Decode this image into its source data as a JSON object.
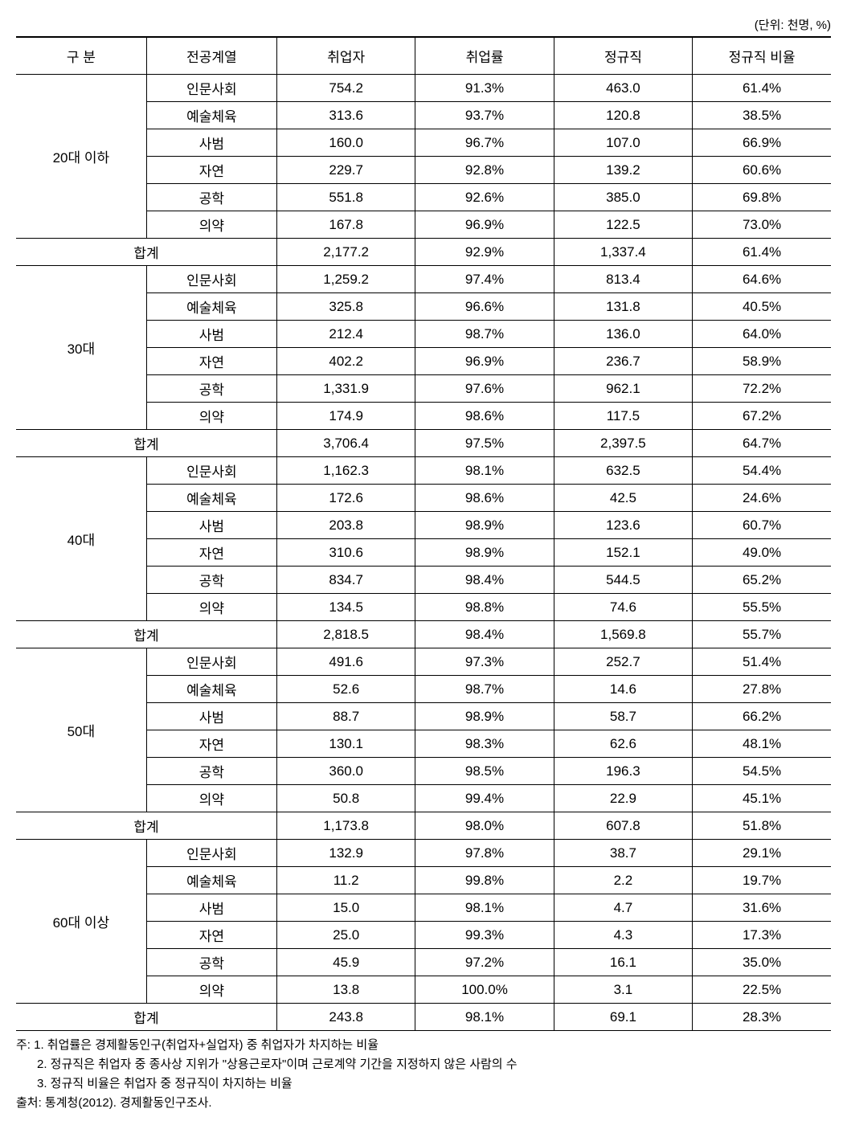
{
  "unit_label": "(단위: 천명, %)",
  "headers": {
    "c1": "구 분",
    "c2": "전공계열",
    "c3": "취업자",
    "c4": "취업률",
    "c5": "정규직",
    "c6": "정규직 비율"
  },
  "groups": [
    {
      "label": "20대 이하",
      "rows": [
        {
          "major": "인문사회",
          "employed": "754.2",
          "rate": "91.3%",
          "regular": "463.0",
          "regular_rate": "61.4%"
        },
        {
          "major": "예술체육",
          "employed": "313.6",
          "rate": "93.7%",
          "regular": "120.8",
          "regular_rate": "38.5%"
        },
        {
          "major": "사범",
          "employed": "160.0",
          "rate": "96.7%",
          "regular": "107.0",
          "regular_rate": "66.9%"
        },
        {
          "major": "자연",
          "employed": "229.7",
          "rate": "92.8%",
          "regular": "139.2",
          "regular_rate": "60.6%"
        },
        {
          "major": "공학",
          "employed": "551.8",
          "rate": "92.6%",
          "regular": "385.0",
          "regular_rate": "69.8%"
        },
        {
          "major": "의약",
          "employed": "167.8",
          "rate": "96.9%",
          "regular": "122.5",
          "regular_rate": "73.0%"
        }
      ],
      "subtotal": {
        "label": "합계",
        "employed": "2,177.2",
        "rate": "92.9%",
        "regular": "1,337.4",
        "regular_rate": "61.4%"
      }
    },
    {
      "label": "30대",
      "rows": [
        {
          "major": "인문사회",
          "employed": "1,259.2",
          "rate": "97.4%",
          "regular": "813.4",
          "regular_rate": "64.6%"
        },
        {
          "major": "예술체육",
          "employed": "325.8",
          "rate": "96.6%",
          "regular": "131.8",
          "regular_rate": "40.5%"
        },
        {
          "major": "사범",
          "employed": "212.4",
          "rate": "98.7%",
          "regular": "136.0",
          "regular_rate": "64.0%"
        },
        {
          "major": "자연",
          "employed": "402.2",
          "rate": "96.9%",
          "regular": "236.7",
          "regular_rate": "58.9%"
        },
        {
          "major": "공학",
          "employed": "1,331.9",
          "rate": "97.6%",
          "regular": "962.1",
          "regular_rate": "72.2%"
        },
        {
          "major": "의약",
          "employed": "174.9",
          "rate": "98.6%",
          "regular": "117.5",
          "regular_rate": "67.2%"
        }
      ],
      "subtotal": {
        "label": "합계",
        "employed": "3,706.4",
        "rate": "97.5%",
        "regular": "2,397.5",
        "regular_rate": "64.7%"
      }
    },
    {
      "label": "40대",
      "rows": [
        {
          "major": "인문사회",
          "employed": "1,162.3",
          "rate": "98.1%",
          "regular": "632.5",
          "regular_rate": "54.4%"
        },
        {
          "major": "예술체육",
          "employed": "172.6",
          "rate": "98.6%",
          "regular": "42.5",
          "regular_rate": "24.6%"
        },
        {
          "major": "사범",
          "employed": "203.8",
          "rate": "98.9%",
          "regular": "123.6",
          "regular_rate": "60.7%"
        },
        {
          "major": "자연",
          "employed": "310.6",
          "rate": "98.9%",
          "regular": "152.1",
          "regular_rate": "49.0%"
        },
        {
          "major": "공학",
          "employed": "834.7",
          "rate": "98.4%",
          "regular": "544.5",
          "regular_rate": "65.2%"
        },
        {
          "major": "의약",
          "employed": "134.5",
          "rate": "98.8%",
          "regular": "74.6",
          "regular_rate": "55.5%"
        }
      ],
      "subtotal": {
        "label": "합계",
        "employed": "2,818.5",
        "rate": "98.4%",
        "regular": "1,569.8",
        "regular_rate": "55.7%"
      }
    },
    {
      "label": "50대",
      "rows": [
        {
          "major": "인문사회",
          "employed": "491.6",
          "rate": "97.3%",
          "regular": "252.7",
          "regular_rate": "51.4%"
        },
        {
          "major": "예술체육",
          "employed": "52.6",
          "rate": "98.7%",
          "regular": "14.6",
          "regular_rate": "27.8%"
        },
        {
          "major": "사범",
          "employed": "88.7",
          "rate": "98.9%",
          "regular": "58.7",
          "regular_rate": "66.2%"
        },
        {
          "major": "자연",
          "employed": "130.1",
          "rate": "98.3%",
          "regular": "62.6",
          "regular_rate": "48.1%"
        },
        {
          "major": "공학",
          "employed": "360.0",
          "rate": "98.5%",
          "regular": "196.3",
          "regular_rate": "54.5%"
        },
        {
          "major": "의약",
          "employed": "50.8",
          "rate": "99.4%",
          "regular": "22.9",
          "regular_rate": "45.1%"
        }
      ],
      "subtotal": {
        "label": "합계",
        "employed": "1,173.8",
        "rate": "98.0%",
        "regular": "607.8",
        "regular_rate": "51.8%"
      }
    },
    {
      "label": "60대 이상",
      "rows": [
        {
          "major": "인문사회",
          "employed": "132.9",
          "rate": "97.8%",
          "regular": "38.7",
          "regular_rate": "29.1%"
        },
        {
          "major": "예술체육",
          "employed": "11.2",
          "rate": "99.8%",
          "regular": "2.2",
          "regular_rate": "19.7%"
        },
        {
          "major": "사범",
          "employed": "15.0",
          "rate": "98.1%",
          "regular": "4.7",
          "regular_rate": "31.6%"
        },
        {
          "major": "자연",
          "employed": "25.0",
          "rate": "99.3%",
          "regular": "4.3",
          "regular_rate": "17.3%"
        },
        {
          "major": "공학",
          "employed": "45.9",
          "rate": "97.2%",
          "regular": "16.1",
          "regular_rate": "35.0%"
        },
        {
          "major": "의약",
          "employed": "13.8",
          "rate": "100.0%",
          "regular": "3.1",
          "regular_rate": "22.5%"
        }
      ],
      "subtotal": {
        "label": "합계",
        "employed": "243.8",
        "rate": "98.1%",
        "regular": "69.1",
        "regular_rate": "28.3%"
      }
    }
  ],
  "footnotes": {
    "n1": "주: 1. 취업률은 경제활동인구(취업자+실업자) 중 취업자가 차지하는 비율",
    "n2": "2. 정규직은 취업자 중 종사상 지위가 \"상용근로자\"이며 근로계약 기간을 지정하지 않은 사람의 수",
    "n3": "3. 정규직 비율은 취업자 중 정규직이 차지하는 비율",
    "source": "출처: 통계청(2012). 경제활동인구조사."
  },
  "style": {
    "font_family": "Malgun Gothic",
    "header_fontsize": 17,
    "body_fontsize": 17,
    "footnote_fontsize": 15,
    "border_color": "#000000",
    "background_color": "#ffffff",
    "text_color": "#000000",
    "col_widths_pct": [
      16,
      16,
      17,
      17,
      17,
      17
    ]
  }
}
